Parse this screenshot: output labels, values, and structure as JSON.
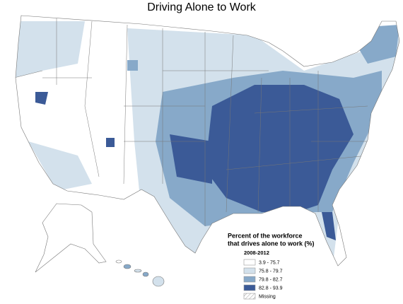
{
  "title": "Driving Alone to Work",
  "legend": {
    "title": [
      "Percent of the workforce",
      "that drives alone to work (%)"
    ],
    "period": "2008-2012",
    "items": [
      {
        "label": "3.9 - 75.7",
        "color": "#ffffff"
      },
      {
        "label": "75.8 - 79.7",
        "color": "#d3e1ec"
      },
      {
        "label": "79.8 - 82.7",
        "color": "#87a9c9"
      },
      {
        "label": "82.8 - 93.9",
        "color": "#3b5a97"
      },
      {
        "label": "Missing",
        "color": "#ffffff",
        "hatch": true
      }
    ]
  }
}
